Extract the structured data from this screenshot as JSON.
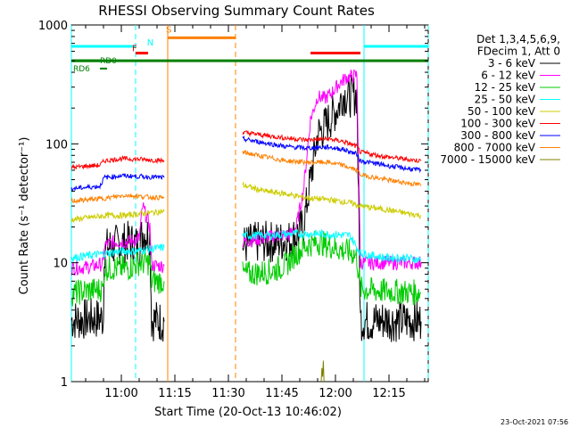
{
  "chart_data": {
    "type": "line",
    "title": "RHESSI Observing Summary Count Rates",
    "xlabel": "Start Time (20-Oct-13 10:46:02)",
    "ylabel": "Count Rate (s⁻¹ detector⁻¹)",
    "yscale": "log",
    "ylim": [
      1,
      1000
    ],
    "xlim_minutes_after_1046": [
      0,
      100
    ],
    "x_tick_labels": [
      {
        "label": "11:00",
        "minute": 14
      },
      {
        "label": "11:15",
        "minute": 29
      },
      {
        "label": "11:30",
        "minute": 44
      },
      {
        "label": "11:45",
        "minute": 59
      },
      {
        "label": "12:00",
        "minute": 74
      },
      {
        "label": "12:15",
        "minute": 89
      }
    ],
    "y_tick_labels": [
      {
        "label": "1",
        "value": 1
      },
      {
        "label": "10",
        "value": 10
      },
      {
        "label": "100",
        "value": 100
      },
      {
        "label": "1000",
        "value": 1000
      }
    ],
    "legend": {
      "header": [
        "Det 1,3,4,5,6,9,",
        "FDecim 1, Att 0"
      ],
      "placement": "right",
      "entries": [
        {
          "label": "3 - 6 keV",
          "color": "#000000"
        },
        {
          "label": "6 - 12 keV",
          "color": "#ff00ff"
        },
        {
          "label": "12 - 25 keV",
          "color": "#00cc00"
        },
        {
          "label": "25 - 50 keV",
          "color": "#00ffff"
        },
        {
          "label": "50 - 100 keV",
          "color": "#cccc00"
        },
        {
          "label": "100 - 300 keV",
          "color": "#ff0000"
        },
        {
          "label": "300 - 800 keV",
          "color": "#0000ff"
        },
        {
          "label": "800 - 7000 keV",
          "color": "#ff8000"
        },
        {
          "label": "7000 - 15000 keV",
          "color": "#808000"
        }
      ]
    },
    "series": [
      {
        "name": "3 - 6 keV",
        "color": "#000000",
        "segments": [
          [
            [
              0,
              3.3
            ],
            [
              8,
              3.4
            ],
            [
              9,
              3.4
            ],
            [
              9.2,
              13
            ],
            [
              12,
              14
            ],
            [
              16,
              15
            ],
            [
              19,
              14
            ],
            [
              20,
              18
            ],
            [
              22,
              17
            ],
            [
              22.5,
              3.3
            ],
            [
              26,
              3.2
            ]
          ],
          [
            [
              48,
              14
            ],
            [
              53,
              15
            ],
            [
              58,
              15
            ],
            [
              61,
              15.5
            ],
            [
              63,
              17
            ],
            [
              65,
              20
            ],
            [
              67,
              50
            ],
            [
              69,
              120
            ],
            [
              71,
              140
            ],
            [
              73,
              170
            ],
            [
              75,
              210
            ],
            [
              76,
              260
            ],
            [
              78,
              250
            ],
            [
              80,
              260
            ],
            [
              81,
              3.3
            ],
            [
              84,
              3.2
            ],
            [
              88,
              3.3
            ],
            [
              92,
              3.2
            ],
            [
              96,
              3.3
            ],
            [
              98,
              3.2
            ]
          ]
        ]
      },
      {
        "name": "6 - 12 keV",
        "color": "#ff00ff",
        "segments": [
          [
            [
              0,
              9
            ],
            [
              5,
              9.2
            ],
            [
              9,
              9.8
            ],
            [
              9.2,
              14
            ],
            [
              12,
              15
            ],
            [
              16,
              15
            ],
            [
              19,
              16
            ],
            [
              20,
              30
            ],
            [
              22,
              20
            ],
            [
              22.5,
              9.5
            ],
            [
              26,
              9.4
            ]
          ],
          [
            [
              48,
              15
            ],
            [
              53,
              16
            ],
            [
              58,
              17
            ],
            [
              61,
              17
            ],
            [
              63,
              20
            ],
            [
              65,
              40
            ],
            [
              67,
              160
            ],
            [
              69,
              250
            ],
            [
              71,
              240
            ],
            [
              73,
              270
            ],
            [
              75,
              320
            ],
            [
              77,
              360
            ],
            [
              79,
              370
            ],
            [
              80,
              380
            ],
            [
              81,
              10
            ],
            [
              86,
              10
            ],
            [
              92,
              10
            ],
            [
              98,
              10
            ]
          ]
        ]
      },
      {
        "name": "12 - 25 keV",
        "color": "#00cc00",
        "segments": [
          [
            [
              0,
              5.5
            ],
            [
              4,
              5.8
            ],
            [
              9,
              6
            ],
            [
              9.2,
              9
            ],
            [
              12,
              9
            ],
            [
              16,
              9
            ],
            [
              19,
              10
            ],
            [
              22,
              10
            ],
            [
              22.5,
              7
            ],
            [
              26,
              7
            ]
          ],
          [
            [
              48,
              8
            ],
            [
              52,
              8.2
            ],
            [
              56,
              8.5
            ],
            [
              60,
              9.5
            ],
            [
              63,
              12
            ],
            [
              66,
              14
            ],
            [
              69,
              15
            ],
            [
              72,
              14
            ],
            [
              75,
              13
            ],
            [
              79,
              12
            ],
            [
              80,
              11
            ],
            [
              81,
              6
            ],
            [
              86,
              5.8
            ],
            [
              92,
              5.7
            ],
            [
              98,
              5.6
            ]
          ]
        ]
      },
      {
        "name": "25 - 50 keV",
        "color": "#00ffff",
        "segments": [
          [
            [
              0,
              11
            ],
            [
              5,
              11.5
            ],
            [
              10,
              12
            ],
            [
              14,
              12.5
            ],
            [
              18,
              12.5
            ],
            [
              22,
              13
            ],
            [
              26,
              13.5
            ]
          ],
          [
            [
              48,
              17
            ],
            [
              55,
              17
            ],
            [
              62,
              17.5
            ],
            [
              70,
              17.5
            ],
            [
              78,
              17
            ],
            [
              81,
              12
            ],
            [
              88,
              11
            ],
            [
              94,
              11
            ],
            [
              98,
              10.5
            ]
          ]
        ]
      },
      {
        "name": "50 - 100 keV",
        "color": "#cccc00",
        "segments": [
          [
            [
              0,
              23
            ],
            [
              5,
              24
            ],
            [
              10,
              25
            ],
            [
              15,
              25
            ],
            [
              20,
              26
            ],
            [
              26,
              27
            ]
          ],
          [
            [
              48,
              45
            ],
            [
              54,
              40
            ],
            [
              60,
              38
            ],
            [
              66,
              35
            ],
            [
              72,
              34
            ],
            [
              78,
              32
            ],
            [
              81,
              30
            ],
            [
              88,
              28
            ],
            [
              94,
              26
            ],
            [
              98,
              25
            ]
          ]
        ]
      },
      {
        "name": "100 - 300 keV",
        "color": "#ff0000",
        "segments": [
          [
            [
              0,
              63
            ],
            [
              4,
              65
            ],
            [
              8,
              66
            ],
            [
              9.2,
              72
            ],
            [
              14,
              75
            ],
            [
              20,
              74
            ],
            [
              26,
              72
            ]
          ],
          [
            [
              48,
              125
            ],
            [
              54,
              118
            ],
            [
              60,
              112
            ],
            [
              66,
              108
            ],
            [
              72,
              110
            ],
            [
              76,
              105
            ],
            [
              80,
              95
            ],
            [
              81,
              85
            ],
            [
              88,
              78
            ],
            [
              94,
              74
            ],
            [
              98,
              72
            ]
          ]
        ]
      },
      {
        "name": "300 - 800 keV",
        "color": "#0000ff",
        "segments": [
          [
            [
              0,
              42
            ],
            [
              4,
              43
            ],
            [
              8,
              44
            ],
            [
              9.2,
              52
            ],
            [
              14,
              54
            ],
            [
              20,
              53
            ],
            [
              26,
              52
            ]
          ],
          [
            [
              48,
              110
            ],
            [
              54,
              102
            ],
            [
              60,
              95
            ],
            [
              66,
              92
            ],
            [
              72,
              94
            ],
            [
              76,
              90
            ],
            [
              80,
              82
            ],
            [
              81,
              72
            ],
            [
              88,
              66
            ],
            [
              94,
              62
            ],
            [
              98,
              60
            ]
          ]
        ]
      },
      {
        "name": "800 - 7000 keV",
        "color": "#ff8000",
        "segments": [
          [
            [
              0,
              33
            ],
            [
              5,
              34
            ],
            [
              10,
              35
            ],
            [
              15,
              37
            ],
            [
              20,
              36
            ],
            [
              26,
              35
            ]
          ],
          [
            [
              48,
              85
            ],
            [
              54,
              78
            ],
            [
              60,
              72
            ],
            [
              66,
              70
            ],
            [
              72,
              70
            ],
            [
              76,
              66
            ],
            [
              80,
              60
            ],
            [
              81,
              55
            ],
            [
              88,
              50
            ],
            [
              94,
              47
            ],
            [
              98,
              45
            ]
          ]
        ]
      },
      {
        "name": "7000 - 15000 keV",
        "color": "#808000",
        "segments": [
          [
            [
              70,
              1
            ],
            [
              70.2,
              1.3
            ],
            [
              70.4,
              1.1
            ],
            [
              70.6,
              1.5
            ],
            [
              70.8,
              1.0
            ]
          ]
        ]
      }
    ],
    "status_bars": [
      {
        "label": "",
        "color": "#00ffff",
        "minutes": [
          [
            0,
            18
          ]
        ],
        "y": 660
      },
      {
        "label": "",
        "color": "#00ffff",
        "minutes": [
          [
            82,
            100
          ]
        ],
        "y": 660
      },
      {
        "label": "S",
        "color": "#ff8000",
        "minutes": [
          [
            27,
            46
          ]
        ],
        "y": 780
      },
      {
        "label": "F",
        "color": "#ff0000",
        "minutes": [
          [
            18,
            21.5
          ]
        ],
        "y": 580
      },
      {
        "label": "",
        "color": "#ff0000",
        "minutes": [
          [
            67,
            81
          ]
        ],
        "y": 580
      },
      {
        "label": "N",
        "color": "#00ffff",
        "minutes": [],
        "y": 660
      },
      {
        "label": "",
        "color": "#008000",
        "minutes": [
          [
            0,
            100
          ]
        ],
        "y": 500
      },
      {
        "label": "RD0",
        "color": "#008000",
        "minutes": [
          [
            0.5,
            8
          ]
        ],
        "y": 500
      },
      {
        "label": "RD6",
        "color": "#008000",
        "minutes": [
          [
            8,
            10
          ]
        ],
        "y": 430
      }
    ],
    "vertical_markers": [
      {
        "minute": 0,
        "color": "#00ffff",
        "style": "solid"
      },
      {
        "minute": 18,
        "color": "#00ffff",
        "style": "dashed"
      },
      {
        "minute": 27,
        "color": "#ff8000",
        "style": "solid"
      },
      {
        "minute": 46,
        "color": "#ff8000",
        "style": "dashed"
      },
      {
        "minute": 82,
        "color": "#00ffff",
        "style": "solid"
      },
      {
        "minute": 100,
        "color": "#00ffff",
        "style": "dashed"
      }
    ],
    "timestamp": "23-Oct-2021 07:56"
  }
}
